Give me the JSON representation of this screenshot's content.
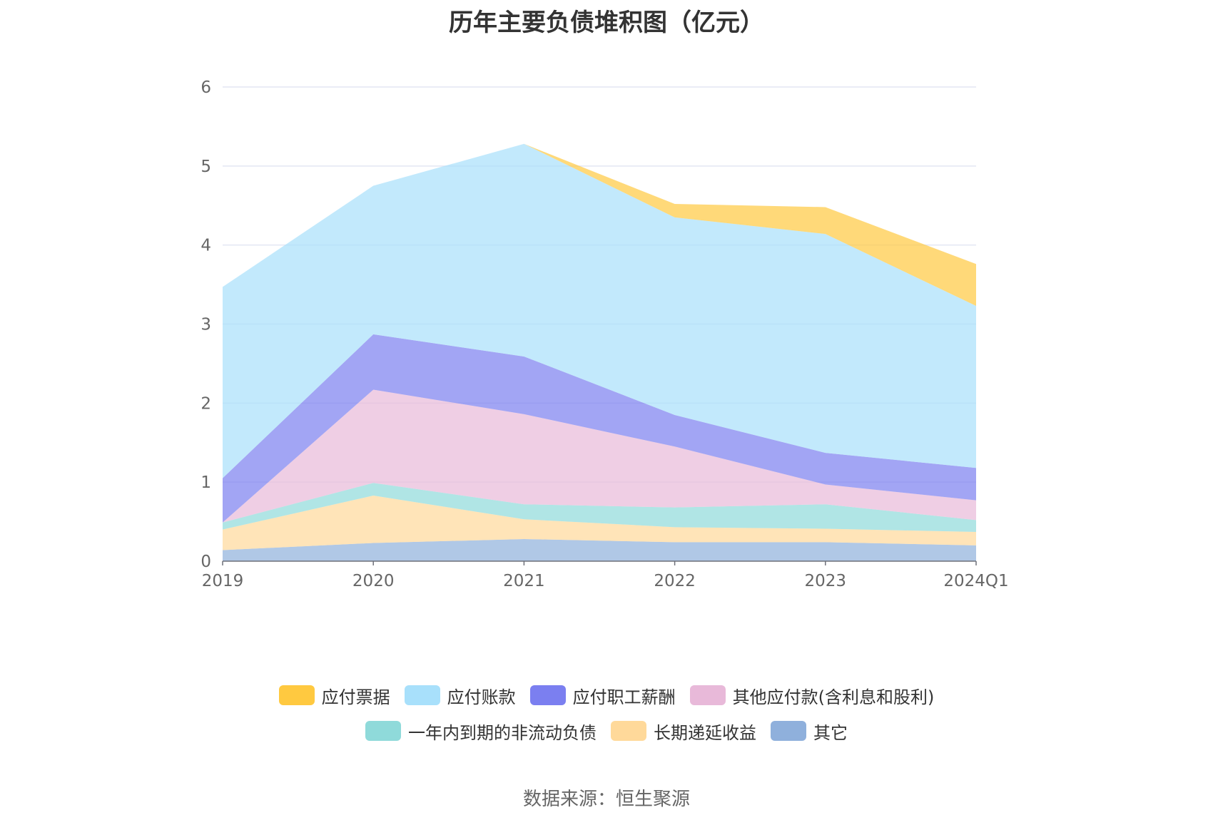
{
  "title": "历年主要负债堆积图（亿元）",
  "source": "数据来源：恒生聚源",
  "chart_data": {
    "type": "area",
    "stacked": true,
    "categories": [
      "2019",
      "2020",
      "2021",
      "2022",
      "2023",
      "2024Q1"
    ],
    "y_ticks": [
      "0",
      "1",
      "2",
      "3",
      "4",
      "5",
      "6"
    ],
    "ylim": [
      0,
      6
    ],
    "grid": true,
    "legend_position": "bottom",
    "series": [
      {
        "name": "其它",
        "color": "#8fb0dc",
        "values": [
          0.14,
          0.23,
          0.28,
          0.24,
          0.24,
          0.2
        ]
      },
      {
        "name": "长期递延收益",
        "color": "#ffd99a",
        "values": [
          0.26,
          0.6,
          0.25,
          0.19,
          0.17,
          0.17
        ]
      },
      {
        "name": "一年内到期的非流动负债",
        "color": "#8fdada",
        "values": [
          0.09,
          0.16,
          0.19,
          0.25,
          0.31,
          0.15
        ]
      },
      {
        "name": "其他应付款(含利息和股利)",
        "color": "#e8b9d9",
        "values": [
          0.0,
          1.18,
          1.14,
          0.77,
          0.25,
          0.25
        ]
      },
      {
        "name": "应付职工薪酬",
        "color": "#7b7ff0",
        "values": [
          0.56,
          0.7,
          0.73,
          0.4,
          0.4,
          0.41
        ]
      },
      {
        "name": "应付账款",
        "color": "#a8e0fb",
        "values": [
          2.42,
          1.88,
          2.69,
          2.5,
          2.77,
          2.05
        ]
      },
      {
        "name": "应付票据",
        "color": "#ffc940",
        "values": [
          0.0,
          0.0,
          0.0,
          0.17,
          0.34,
          0.53
        ]
      }
    ]
  },
  "legend": {
    "row1": [
      {
        "label": "应付票据",
        "color": "#ffc940"
      },
      {
        "label": "应付账款",
        "color": "#a8e0fb"
      },
      {
        "label": "应付职工薪酬",
        "color": "#7b7ff0"
      },
      {
        "label": "其他应付款(含利息和股利)",
        "color": "#e8b9d9"
      }
    ],
    "row2": [
      {
        "label": "一年内到期的非流动负债",
        "color": "#8fdada"
      },
      {
        "label": "长期递延收益",
        "color": "#ffd99a"
      },
      {
        "label": "其它",
        "color": "#8fb0dc"
      }
    ]
  }
}
